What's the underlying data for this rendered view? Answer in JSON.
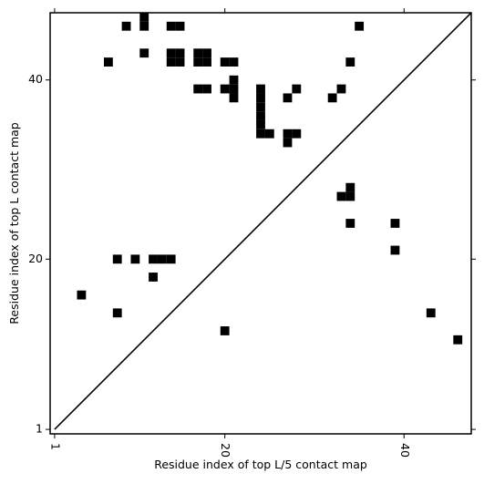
{
  "chart_data": {
    "type": "contact_map",
    "xlabel": "Residue index of top L/5 contact map",
    "ylabel": "Residue index of top L contact map",
    "x": [
      9,
      11,
      11,
      14,
      15,
      7,
      11,
      14,
      15,
      14,
      15,
      17,
      18,
      17,
      18,
      17,
      18,
      20,
      21,
      21,
      20,
      21,
      21,
      24,
      24,
      24,
      24,
      24,
      24,
      25,
      27,
      28,
      27,
      28,
      27,
      32,
      33,
      34,
      35,
      33,
      34,
      34,
      34,
      39,
      39,
      8,
      10,
      12,
      13,
      14,
      12,
      4,
      8,
      20,
      43,
      46
    ],
    "y": [
      46,
      47,
      46,
      46,
      46,
      42,
      43,
      43,
      43,
      42,
      42,
      43,
      43,
      42,
      42,
      39,
      39,
      42,
      42,
      40,
      39,
      39,
      38,
      39,
      38,
      37,
      36,
      35,
      34,
      34,
      38,
      39,
      34,
      34,
      33,
      38,
      39,
      42,
      46,
      27,
      27,
      28,
      24,
      24,
      21,
      20,
      20,
      20,
      20,
      20,
      18,
      16,
      14,
      12,
      14,
      11
    ],
    "color": "#000000",
    "diagonal": true,
    "xlim": [
      0.5,
      47.5
    ],
    "ylim": [
      0.5,
      47.5
    ],
    "xticks": [
      1,
      20,
      40
    ],
    "yticks": [
      1,
      20,
      40
    ]
  }
}
